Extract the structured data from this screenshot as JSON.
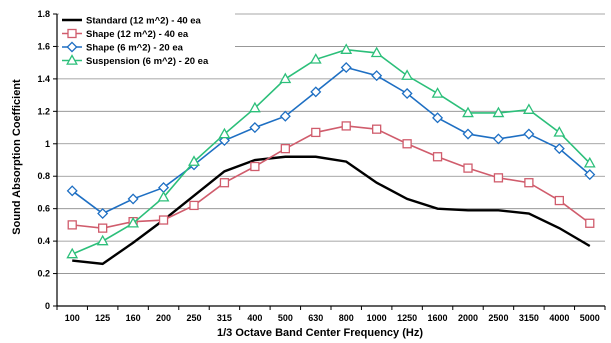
{
  "chart_data": {
    "type": "line",
    "xlabel": "1/3 Octave Band Center Frequency (Hz)",
    "ylabel": "Sound Absorption Coefficient",
    "categories": [
      "100",
      "125",
      "160",
      "200",
      "250",
      "315",
      "400",
      "500",
      "630",
      "800",
      "1000",
      "1250",
      "1600",
      "2000",
      "2500",
      "3150",
      "4000",
      "5000"
    ],
    "ylim": [
      0,
      1.8
    ],
    "yticks": [
      "0",
      "0.2",
      "0.4",
      "0.6",
      "0.8",
      "1",
      "1.2",
      "1.4",
      "1.6",
      "1.8"
    ],
    "grid": "horizontal",
    "legend_position": "top-left",
    "series": [
      {
        "name": "Standard (12 m^2) - 40 ea",
        "color": "#000000",
        "marker": "none",
        "values": [
          0.28,
          0.26,
          0.39,
          0.53,
          0.68,
          0.83,
          0.9,
          0.92,
          0.92,
          0.89,
          0.76,
          0.66,
          0.6,
          0.59,
          0.59,
          0.57,
          0.48,
          0.37
        ]
      },
      {
        "name": "Shape (12 m^2) - 40 ea",
        "color": "#d05c6c",
        "marker": "square",
        "values": [
          0.5,
          0.48,
          0.52,
          0.53,
          0.62,
          0.76,
          0.86,
          0.97,
          1.07,
          1.11,
          1.09,
          1.0,
          0.92,
          0.85,
          0.79,
          0.76,
          0.65,
          0.51
        ]
      },
      {
        "name": "Shape (6 m^2) - 20 ea",
        "color": "#1e6fc3",
        "marker": "diamond",
        "values": [
          0.71,
          0.57,
          0.66,
          0.73,
          0.87,
          1.02,
          1.1,
          1.17,
          1.32,
          1.47,
          1.42,
          1.31,
          1.16,
          1.06,
          1.03,
          1.06,
          0.97,
          0.81
        ]
      },
      {
        "name": "Suspension (6 m^2) - 20 ea",
        "color": "#2cbf7a",
        "marker": "triangle",
        "values": [
          0.32,
          0.4,
          0.51,
          0.67,
          0.89,
          1.06,
          1.22,
          1.4,
          1.52,
          1.58,
          1.56,
          1.42,
          1.31,
          1.19,
          1.19,
          1.21,
          1.07,
          0.88
        ]
      }
    ]
  }
}
